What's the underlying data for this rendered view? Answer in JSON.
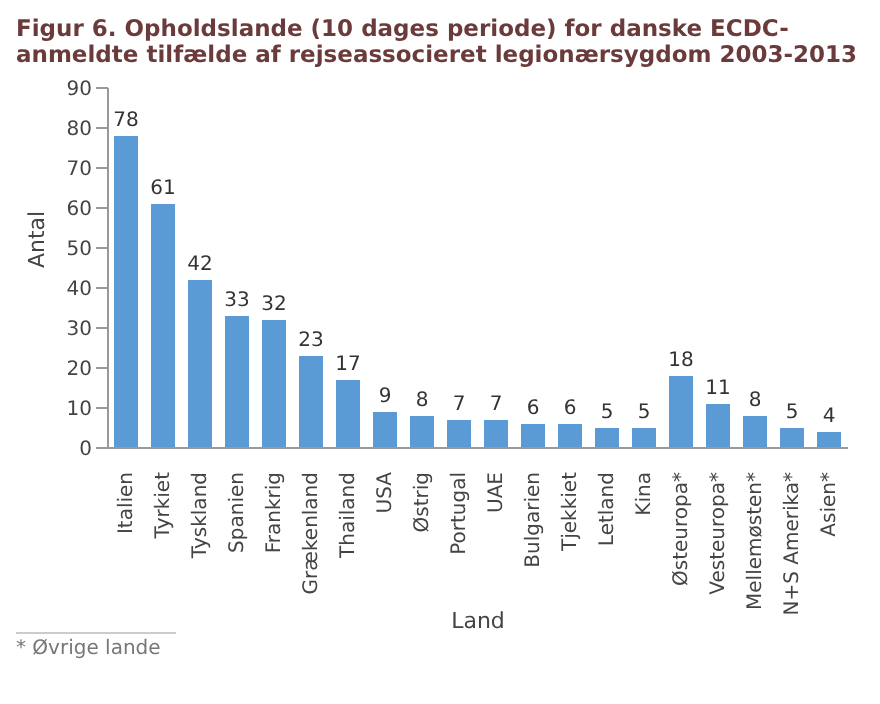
{
  "chart_data": {
    "type": "bar",
    "title": "Figur 6. Opholdslande (10 dages periode) for danske ECDC-anmeldte tilfælde af rejseassocieret legionærsygdom 2003-2013",
    "xlabel": "Land",
    "ylabel": "Antal",
    "categories": [
      "Italien",
      "Tyrkiet",
      "Tyskland",
      "Spanien",
      "Frankrig",
      "Grækenland",
      "Thailand",
      "USA",
      "Østrig",
      "Portugal",
      "UAE",
      "Bulgarien",
      "Tjekkiet",
      "Letland",
      "Kina",
      "Østeuropa*",
      "Vesteuropa*",
      "Mellemøsten*",
      "N+S Amerika*",
      "Asien*"
    ],
    "values": [
      78,
      61,
      42,
      33,
      32,
      23,
      17,
      9,
      8,
      7,
      7,
      6,
      6,
      5,
      5,
      18,
      11,
      8,
      5,
      4
    ],
    "color": "#5b9bd5",
    "ylim": [
      0,
      90
    ],
    "yticks": [
      0,
      10,
      20,
      30,
      40,
      50,
      60,
      70,
      80,
      90
    ],
    "data_labels": true,
    "annotations": [
      "* Øvrige lande"
    ]
  }
}
